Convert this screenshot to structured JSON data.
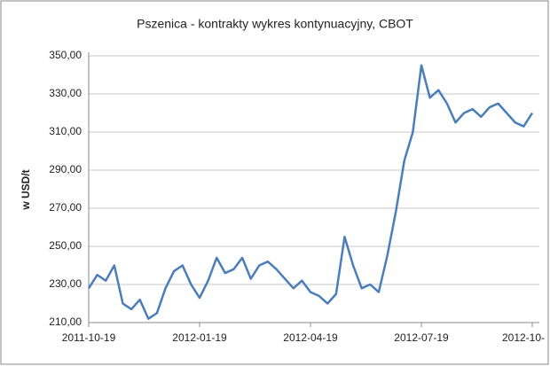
{
  "chart_data": {
    "type": "line",
    "title": "Pszenica - kontrakty wykres kontynuacyjny, CBOT",
    "y_label": "w USD/t",
    "categories": [
      "2011-10-19",
      null,
      null,
      null,
      null,
      null,
      null,
      null,
      null,
      null,
      null,
      null,
      null,
      "2012-01-19",
      null,
      null,
      null,
      null,
      null,
      null,
      null,
      null,
      null,
      null,
      null,
      null,
      "2012-04-19",
      null,
      null,
      null,
      null,
      null,
      null,
      null,
      null,
      null,
      null,
      null,
      null,
      "2012-07-19",
      null,
      null,
      null,
      null,
      null,
      null,
      null,
      null,
      null,
      null,
      null,
      null,
      "2012-10-"
    ],
    "series": [
      {
        "name": "Pszenica",
        "color": "#4a7ebb",
        "values": [
          228,
          235,
          232,
          240,
          220,
          217,
          222,
          212,
          215,
          228,
          237,
          240,
          230,
          223,
          232,
          244,
          236,
          238,
          244,
          233,
          240,
          242,
          238,
          233,
          228,
          232,
          226,
          224,
          220,
          225,
          255,
          240,
          228,
          230,
          226,
          245,
          268,
          295,
          310,
          345,
          328,
          332,
          325,
          315,
          320,
          322,
          318,
          323,
          325,
          320,
          315,
          313,
          320
        ]
      }
    ],
    "ylim": [
      210,
      350
    ],
    "yticks": [
      {
        "value": 210,
        "label": "210,00"
      },
      {
        "value": 230,
        "label": "230,00"
      },
      {
        "value": 250,
        "label": "250,00"
      },
      {
        "value": 270,
        "label": "270,00"
      },
      {
        "value": 290,
        "label": "290,00"
      },
      {
        "value": 310,
        "label": "310,00"
      },
      {
        "value": 330,
        "label": "330,00"
      },
      {
        "value": 350,
        "label": "350,00"
      }
    ],
    "grid": true
  }
}
